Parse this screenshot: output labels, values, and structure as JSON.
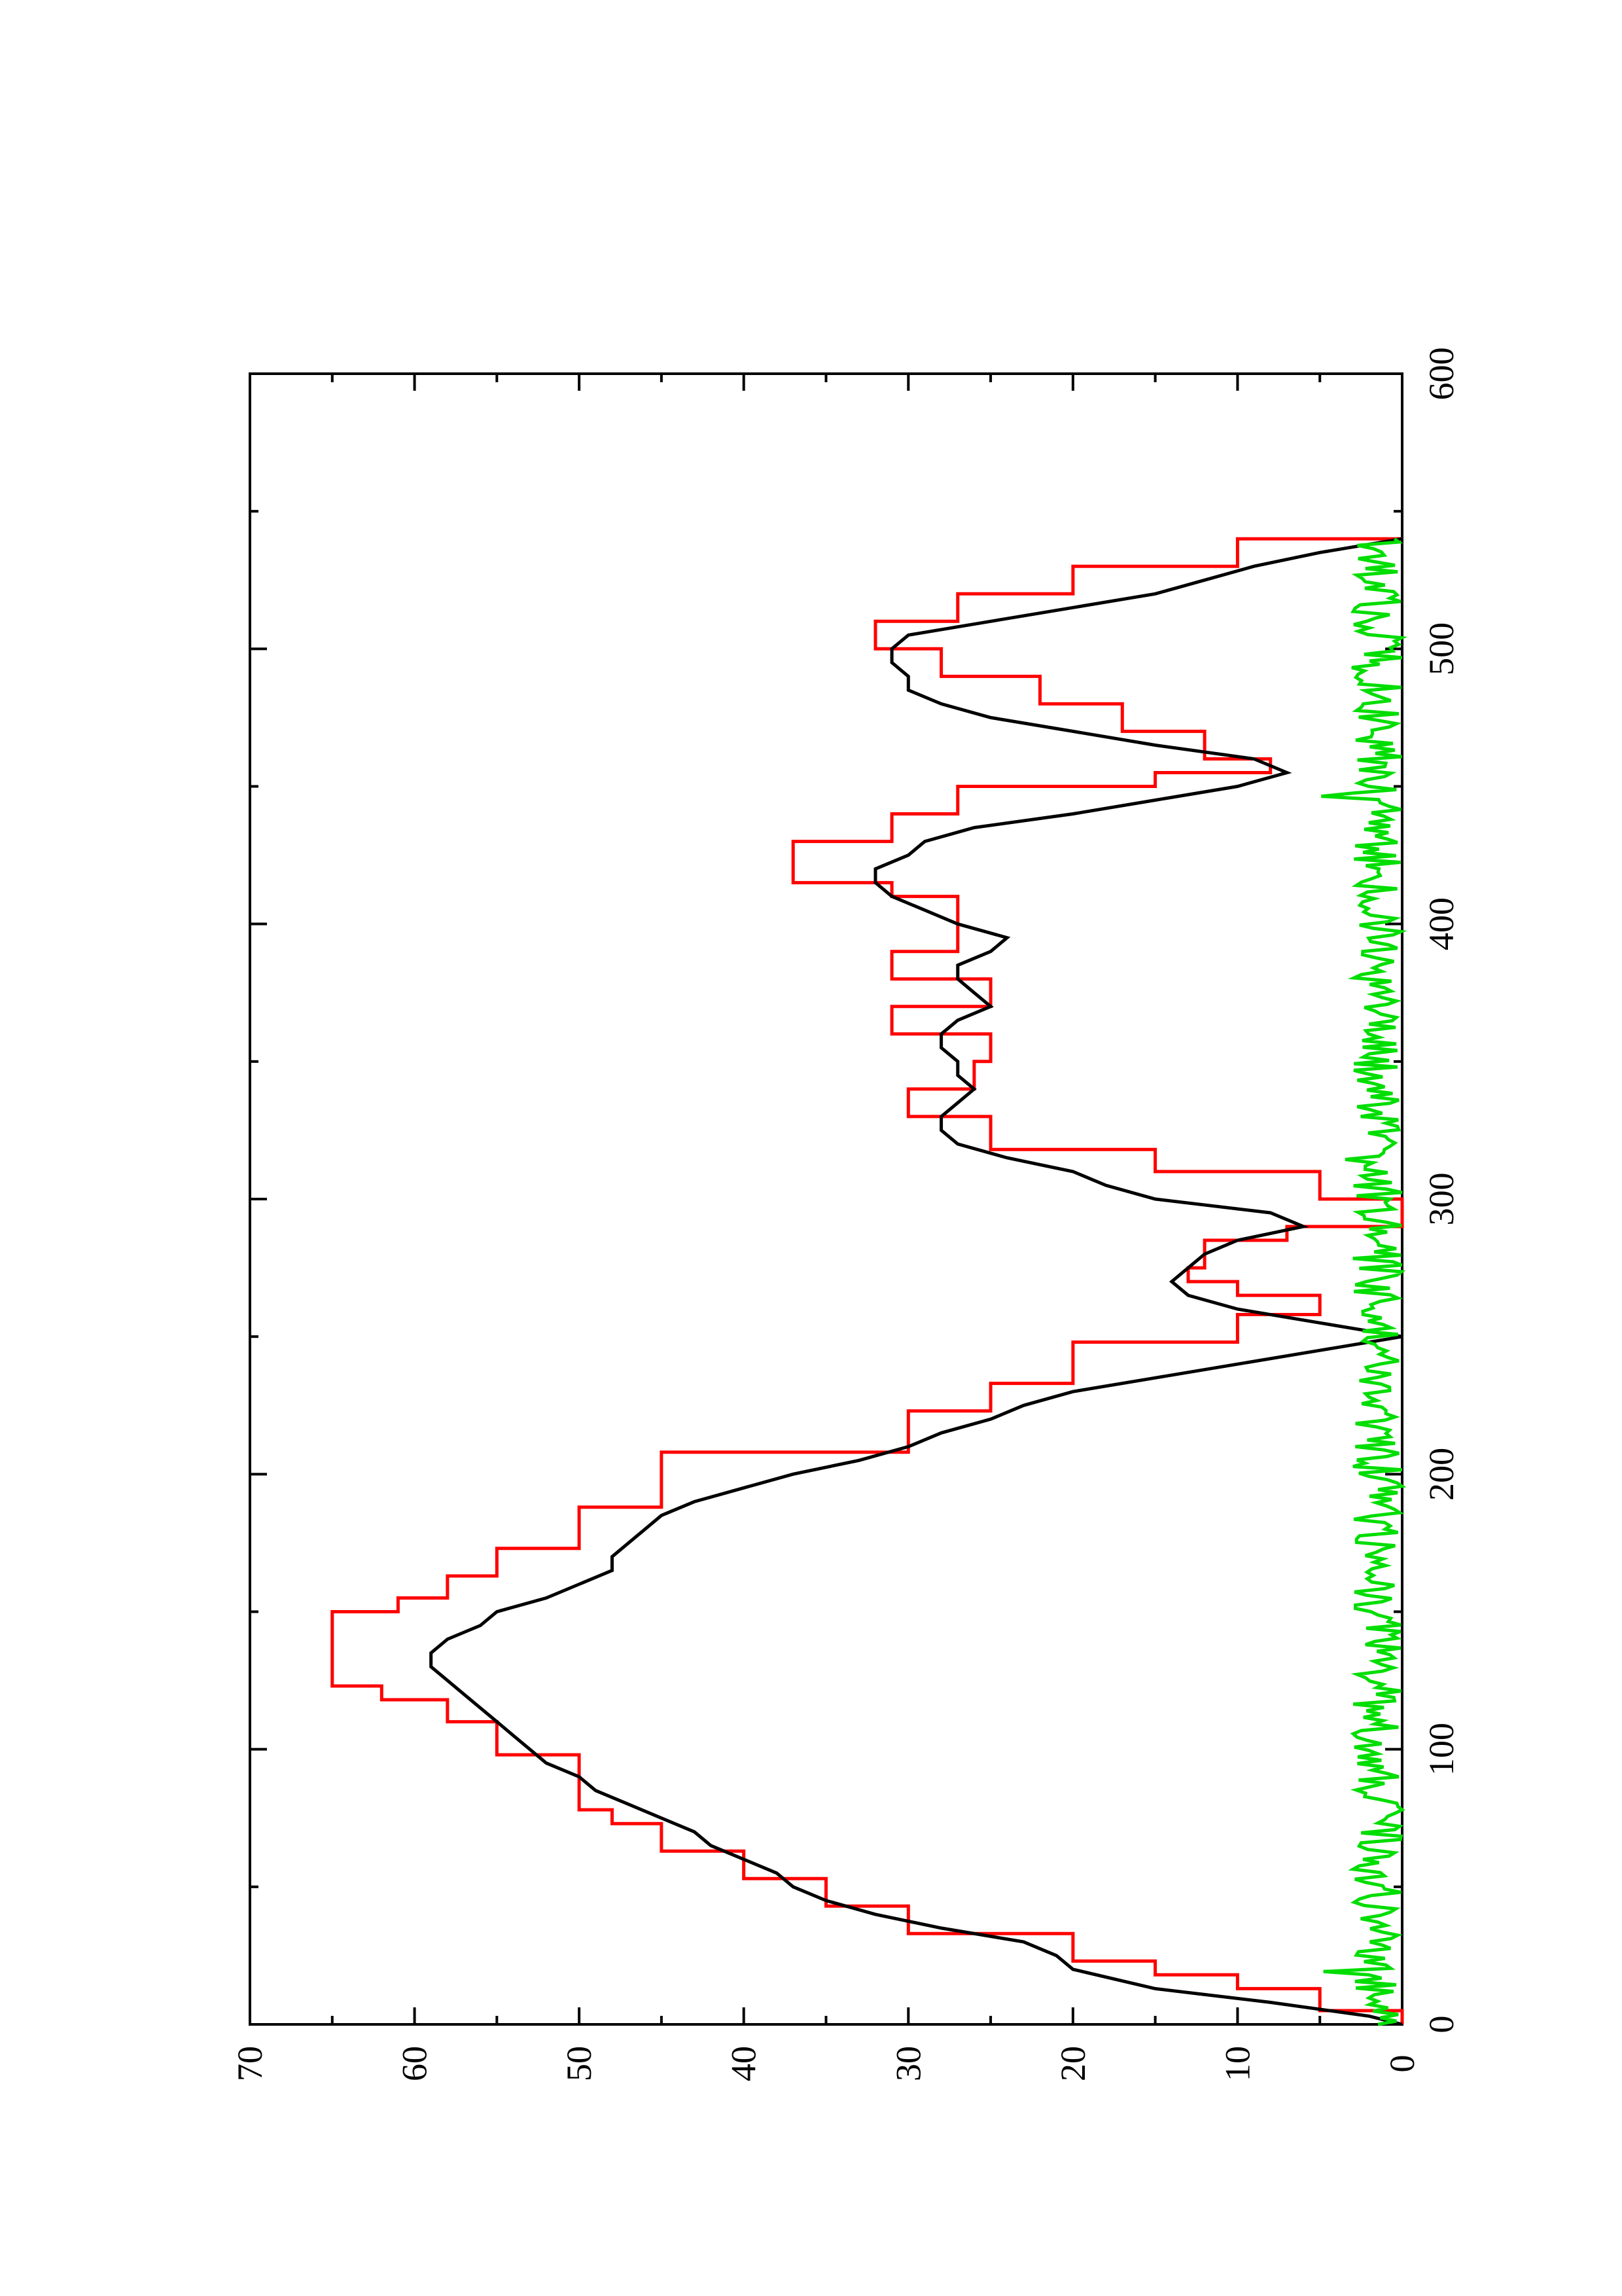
{
  "chart_data": {
    "type": "line",
    "title": "",
    "xlabel": "",
    "ylabel": "",
    "xlim": [
      0,
      600
    ],
    "ylim": [
      0,
      70
    ],
    "x_ticks": [
      0,
      100,
      200,
      300,
      400,
      500,
      600
    ],
    "x_minor_ticks": [
      50,
      150,
      250,
      350,
      450,
      550
    ],
    "y_ticks": [
      0,
      10,
      20,
      30,
      40,
      50,
      60,
      70
    ],
    "y_minor_ticks": [
      5,
      15,
      25,
      35,
      45,
      55,
      65
    ],
    "grid": false,
    "legend": "none",
    "orientation": "rotated 90 degrees counter-clockwise on page",
    "series": [
      {
        "color": "#ff0000",
        "style": "step",
        "x": [
          0,
          5,
          13,
          18,
          23,
          33,
          43,
          53,
          63,
          73,
          78,
          88,
          98,
          110,
          118,
          123,
          145,
          150,
          155,
          163,
          173,
          188,
          208,
          223,
          233,
          248,
          258,
          265,
          270,
          275,
          285,
          290,
          300,
          310,
          318,
          330,
          335,
          340,
          345,
          350,
          355,
          360,
          365,
          370,
          375,
          380,
          385,
          390,
          400,
          410,
          415,
          420,
          430,
          440,
          450,
          455,
          460,
          470,
          480,
          490,
          500,
          505,
          510,
          520,
          530,
          540
        ],
        "y": [
          0,
          5,
          10,
          15,
          20,
          30,
          35,
          40,
          45,
          48,
          50,
          50,
          55,
          58,
          62,
          65,
          65,
          61,
          58,
          55,
          50,
          45,
          30,
          25,
          20,
          10,
          5,
          10,
          13,
          12,
          7,
          0,
          5,
          15,
          25,
          30,
          30,
          26,
          26,
          25,
          25,
          31,
          31,
          25,
          25,
          31,
          31,
          27,
          27,
          31,
          37,
          37,
          31,
          27,
          15,
          8,
          12,
          17,
          22,
          28,
          32,
          32,
          27,
          20,
          10,
          0
        ]
      },
      {
        "color": "#000000",
        "style": "line",
        "x": [
          0,
          3,
          8,
          13,
          20,
          25,
          30,
          35,
          40,
          45,
          50,
          55,
          60,
          65,
          70,
          75,
          80,
          85,
          90,
          95,
          100,
          105,
          110,
          115,
          120,
          125,
          130,
          135,
          140,
          145,
          150,
          155,
          160,
          165,
          170,
          175,
          180,
          185,
          190,
          195,
          200,
          205,
          210,
          215,
          220,
          225,
          230,
          235,
          240,
          245,
          250,
          255,
          260,
          265,
          270,
          275,
          280,
          285,
          290,
          295,
          300,
          305,
          310,
          315,
          320,
          325,
          330,
          335,
          340,
          345,
          350,
          355,
          360,
          365,
          370,
          375,
          380,
          385,
          390,
          395,
          400,
          405,
          410,
          415,
          420,
          425,
          430,
          435,
          440,
          445,
          450,
          455,
          460,
          465,
          470,
          475,
          480,
          485,
          490,
          495,
          500,
          505,
          510,
          515,
          520,
          525,
          530,
          535,
          540
        ],
        "y": [
          0,
          2,
          8,
          15,
          20,
          21,
          23,
          28,
          32,
          35,
          37,
          38,
          40,
          42,
          43,
          45,
          47,
          49,
          50,
          52,
          53,
          54,
          55,
          56,
          57,
          58,
          59,
          59,
          58,
          56,
          55,
          52,
          50,
          48,
          48,
          47,
          46,
          45,
          43,
          40,
          37,
          33,
          30,
          28,
          25,
          23,
          20,
          15,
          10,
          5,
          0,
          5,
          10,
          13,
          14,
          13,
          12,
          10,
          6,
          8,
          15,
          18,
          20,
          24,
          27,
          28,
          28,
          27,
          26,
          27,
          27,
          28,
          28,
          27,
          25,
          26,
          27,
          27,
          25,
          24,
          27,
          29,
          31,
          32,
          32,
          30,
          29,
          26,
          20,
          15,
          10,
          7,
          9,
          15,
          20,
          25,
          28,
          30,
          30,
          31,
          31,
          30,
          25,
          20,
          15,
          12,
          9,
          5,
          0
        ]
      },
      {
        "color": "#00dd00",
        "style": "noise",
        "x_range": [
          0,
          540
        ],
        "y_typical_range": [
          0,
          3
        ],
        "y_peak": 7
      }
    ]
  }
}
